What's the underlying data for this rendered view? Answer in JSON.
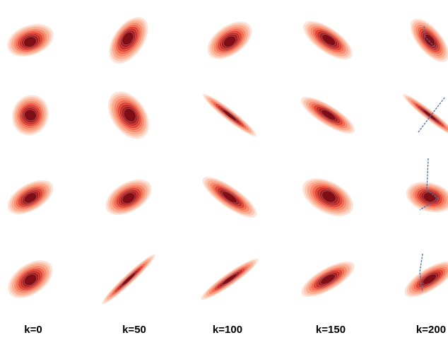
{
  "chart_data": {
    "type": "kde-density-grid",
    "description_rows": 4,
    "columns": [
      "k=0",
      "k=50",
      "k=100",
      "k=150",
      "k=200"
    ],
    "colormap": "Reds",
    "overlay_color": "#4a6fa5",
    "grid": false,
    "axes_visible": false,
    "panels": [
      [
        {
          "angle": 70,
          "spread_major": 1.0,
          "spread_minor": 0.62,
          "skew": 0.25
        },
        {
          "angle": 35,
          "spread_major": 1.1,
          "spread_minor": 0.62,
          "skew": -0.3
        },
        {
          "angle": 55,
          "spread_major": 1.05,
          "spread_minor": 0.6,
          "skew": 0.2
        },
        {
          "angle": -55,
          "spread_major": 1.2,
          "spread_minor": 0.5,
          "skew": 0.15
        },
        {
          "angle": -40,
          "spread_major": 1.1,
          "spread_minor": 0.5,
          "skew": 0.0,
          "overlay": true
        }
      ],
      [
        {
          "angle": 20,
          "spread_major": 0.85,
          "spread_minor": 0.75,
          "skew": 0.0
        },
        {
          "angle": -35,
          "spread_major": 1.1,
          "spread_minor": 0.7,
          "skew": 0.2
        },
        {
          "angle": -52,
          "spread_major": 1.4,
          "spread_minor": 0.22,
          "skew": 0.0
        },
        {
          "angle": -58,
          "spread_major": 1.3,
          "spread_minor": 0.4,
          "skew": 0.1
        },
        {
          "angle": -52,
          "spread_major": 1.4,
          "spread_minor": 0.2,
          "skew": 0.0,
          "overlay": true
        }
      ],
      [
        {
          "angle": 60,
          "spread_major": 1.05,
          "spread_minor": 0.55,
          "skew": 0.1
        },
        {
          "angle": 60,
          "spread_major": 1.05,
          "spread_minor": 0.6,
          "skew": 0.15
        },
        {
          "angle": -55,
          "spread_major": 1.35,
          "spread_minor": 0.42,
          "skew": 0.0
        },
        {
          "angle": -62,
          "spread_major": 1.15,
          "spread_minor": 0.65,
          "skew": 0.2
        },
        {
          "angle": -75,
          "spread_major": 1.0,
          "spread_minor": 0.6,
          "skew": 0.0,
          "overlay": true
        }
      ],
      [
        {
          "angle": 55,
          "spread_major": 1.05,
          "spread_minor": 0.62,
          "skew": 0.1
        },
        {
          "angle": 47,
          "spread_major": 1.5,
          "spread_minor": 0.2,
          "skew": 0.0
        },
        {
          "angle": 55,
          "spread_major": 1.45,
          "spread_minor": 0.25,
          "skew": 0.0
        },
        {
          "angle": 60,
          "spread_major": 1.25,
          "spread_minor": 0.45,
          "skew": 0.0
        },
        {
          "angle": 58,
          "spread_major": 1.2,
          "spread_minor": 0.45,
          "skew": 0.0,
          "overlay": true
        }
      ]
    ]
  }
}
